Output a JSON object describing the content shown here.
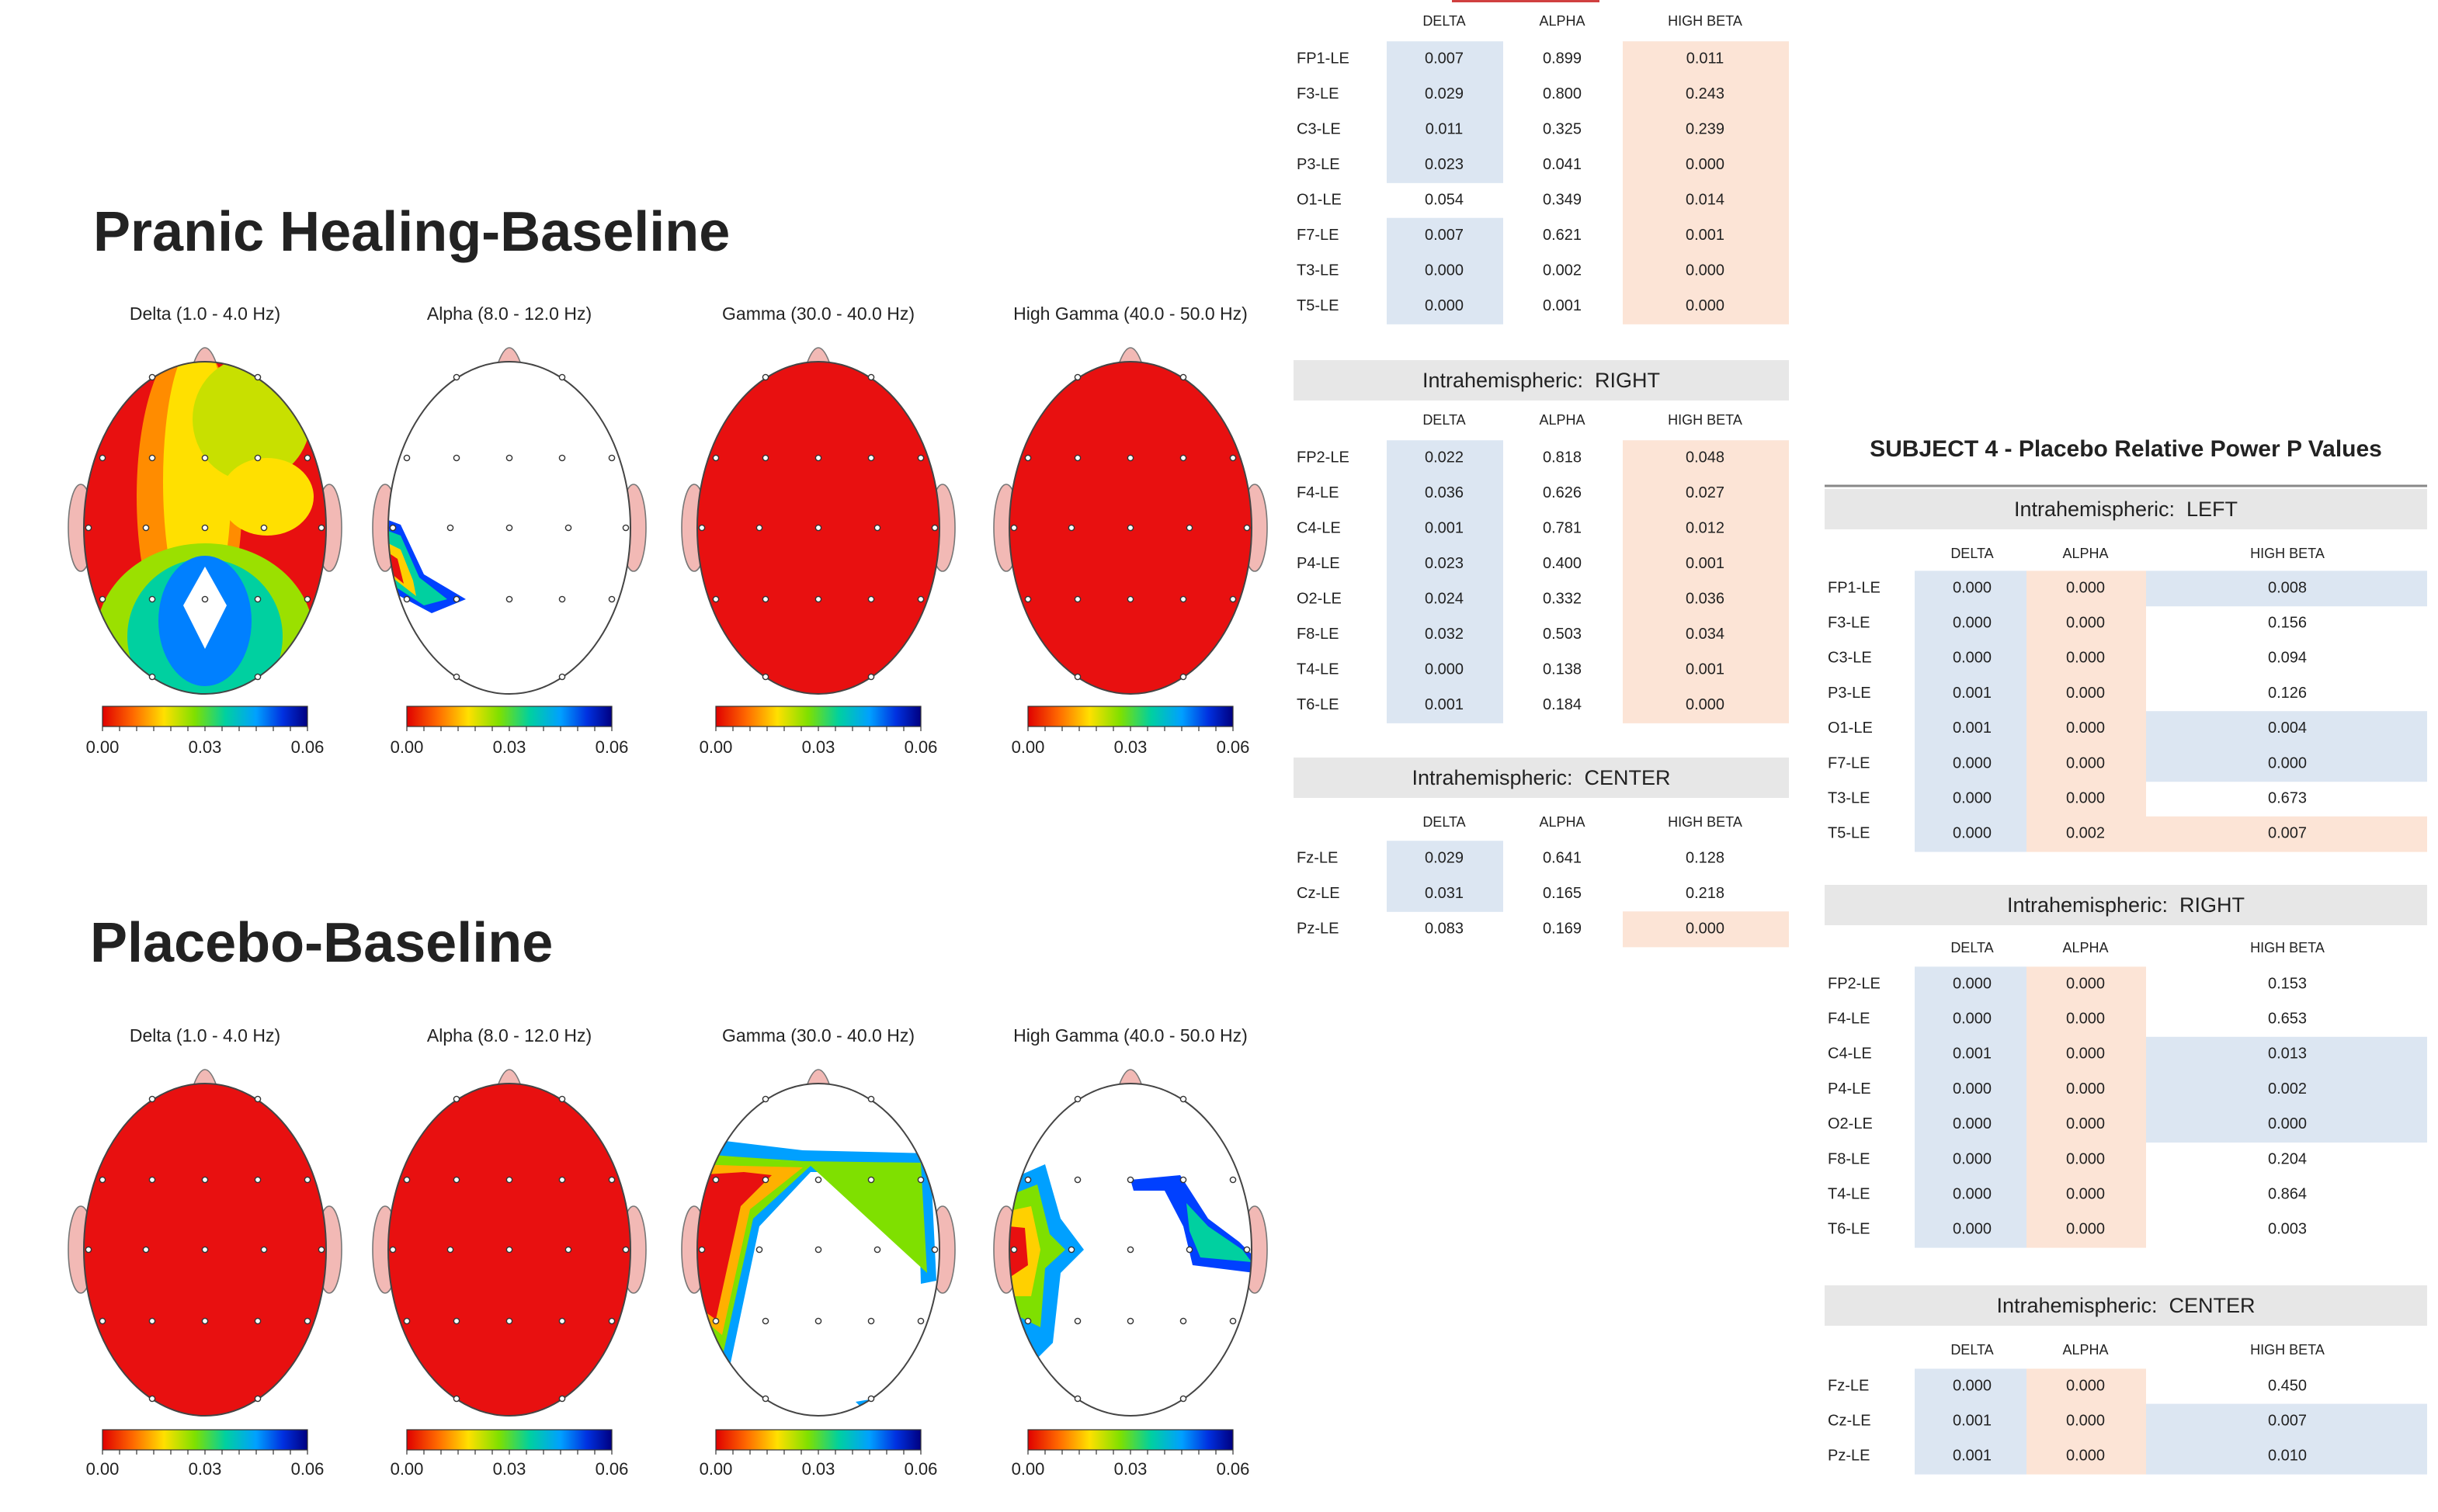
{
  "sections": [
    {
      "title": "Pranic Healing-Baseline",
      "maps": [
        {
          "label": "Delta (1.0 - 4.0 Hz)",
          "scale_labels": [
            "0.00",
            "0.03",
            "0.06"
          ]
        },
        {
          "label": "Alpha (8.0 - 12.0 Hz)",
          "scale_labels": [
            "0.00",
            "0.03",
            "0.06"
          ]
        },
        {
          "label": "Gamma (30.0 - 40.0 Hz)",
          "scale_labels": [
            "0.00",
            "0.03",
            "0.06"
          ]
        },
        {
          "label": "High Gamma (40.0 - 50.0 Hz)",
          "scale_labels": [
            "0.00",
            "0.03",
            "0.06"
          ]
        }
      ]
    },
    {
      "title": "Placebo-Baseline",
      "maps": [
        {
          "label": "Delta (1.0 - 4.0 Hz)",
          "scale_labels": [
            "0.00",
            "0.03",
            "0.06"
          ]
        },
        {
          "label": "Alpha (8.0 - 12.0 Hz)",
          "scale_labels": [
            "0.00",
            "0.03",
            "0.06"
          ]
        },
        {
          "label": "Gamma (30.0 - 40.0 Hz)",
          "scale_labels": [
            "0.00",
            "0.03",
            "0.06"
          ]
        },
        {
          "label": "High Gamma (40.0 - 50.0 Hz)",
          "scale_labels": [
            "0.00",
            "0.03",
            "0.06"
          ]
        }
      ]
    }
  ],
  "tables_left": {
    "tables": [
      {
        "columns": [
          "DELTA",
          "ALPHA",
          "HIGH BETA"
        ],
        "rows": [
          {
            "label": "FP1-LE",
            "cells": [
              "0.007",
              "0.899",
              "0.011"
            ],
            "fills": [
              "#dce6f2",
              null,
              "#fce4d6"
            ]
          },
          {
            "label": "F3-LE",
            "cells": [
              "0.029",
              "0.800",
              "0.243"
            ],
            "fills": [
              "#dce6f2",
              null,
              "#fce4d6"
            ]
          },
          {
            "label": "C3-LE",
            "cells": [
              "0.011",
              "0.325",
              "0.239"
            ],
            "fills": [
              "#dce6f2",
              null,
              "#fce4d6"
            ]
          },
          {
            "label": "P3-LE",
            "cells": [
              "0.023",
              "0.041",
              "0.000"
            ],
            "fills": [
              "#dce6f2",
              null,
              "#fce4d6"
            ]
          },
          {
            "label": "O1-LE",
            "cells": [
              "0.054",
              "0.349",
              "0.014"
            ],
            "fills": [
              null,
              null,
              "#fce4d6"
            ]
          },
          {
            "label": "F7-LE",
            "cells": [
              "0.007",
              "0.621",
              "0.001"
            ],
            "fills": [
              "#dce6f2",
              null,
              "#fce4d6"
            ]
          },
          {
            "label": "T3-LE",
            "cells": [
              "0.000",
              "0.002",
              "0.000"
            ],
            "fills": [
              "#dce6f2",
              null,
              "#fce4d6"
            ]
          },
          {
            "label": "T5-LE",
            "cells": [
              "0.000",
              "0.001",
              "0.000"
            ],
            "fills": [
              "#dce6f2",
              null,
              "#fce4d6"
            ]
          }
        ]
      },
      {
        "title": "Intrahemispheric:  RIGHT",
        "columns": [
          "DELTA",
          "ALPHA",
          "HIGH BETA"
        ],
        "rows": [
          {
            "label": "FP2-LE",
            "cells": [
              "0.022",
              "0.818",
              "0.048"
            ],
            "fills": [
              "#dce6f2",
              null,
              "#fce4d6"
            ]
          },
          {
            "label": "F4-LE",
            "cells": [
              "0.036",
              "0.626",
              "0.027"
            ],
            "fills": [
              "#dce6f2",
              null,
              "#fce4d6"
            ]
          },
          {
            "label": "C4-LE",
            "cells": [
              "0.001",
              "0.781",
              "0.012"
            ],
            "fills": [
              "#dce6f2",
              null,
              "#fce4d6"
            ]
          },
          {
            "label": "P4-LE",
            "cells": [
              "0.023",
              "0.400",
              "0.001"
            ],
            "fills": [
              "#dce6f2",
              null,
              "#fce4d6"
            ]
          },
          {
            "label": "O2-LE",
            "cells": [
              "0.024",
              "0.332",
              "0.036"
            ],
            "fills": [
              "#dce6f2",
              null,
              "#fce4d6"
            ]
          },
          {
            "label": "F8-LE",
            "cells": [
              "0.032",
              "0.503",
              "0.034"
            ],
            "fills": [
              "#dce6f2",
              null,
              "#fce4d6"
            ]
          },
          {
            "label": "T4-LE",
            "cells": [
              "0.000",
              "0.138",
              "0.001"
            ],
            "fills": [
              "#dce6f2",
              null,
              "#fce4d6"
            ]
          },
          {
            "label": "T6-LE",
            "cells": [
              "0.001",
              "0.184",
              "0.000"
            ],
            "fills": [
              "#dce6f2",
              null,
              "#fce4d6"
            ]
          }
        ]
      },
      {
        "title": "Intrahemispheric:  CENTER",
        "columns": [
          "DELTA",
          "ALPHA",
          "HIGH BETA"
        ],
        "rows": [
          {
            "label": "Fz-LE",
            "cells": [
              "0.029",
              "0.641",
              "0.128"
            ],
            "fills": [
              "#dce6f2",
              null,
              null
            ]
          },
          {
            "label": "Cz-LE",
            "cells": [
              "0.031",
              "0.165",
              "0.218"
            ],
            "fills": [
              "#dce6f2",
              null,
              null
            ]
          },
          {
            "label": "Pz-LE",
            "cells": [
              "0.083",
              "0.169",
              "0.000"
            ],
            "fills": [
              null,
              null,
              "#fce4d6"
            ]
          }
        ]
      }
    ]
  },
  "tables_right": {
    "title": "SUBJECT 4 - Placebo Relative Power P Values",
    "tables": [
      {
        "title": "Intrahemispheric:  LEFT",
        "columns": [
          "DELTA",
          "ALPHA",
          "HIGH BETA"
        ],
        "rows": [
          {
            "label": "FP1-LE",
            "cells": [
              "0.000",
              "0.000",
              "0.008"
            ],
            "fills": [
              "#dce6f2",
              "#fce4d6",
              "#dce6f2"
            ]
          },
          {
            "label": "F3-LE",
            "cells": [
              "0.000",
              "0.000",
              "0.156"
            ],
            "fills": [
              "#dce6f2",
              "#fce4d6",
              null
            ]
          },
          {
            "label": "C3-LE",
            "cells": [
              "0.000",
              "0.000",
              "0.094"
            ],
            "fills": [
              "#dce6f2",
              "#fce4d6",
              null
            ]
          },
          {
            "label": "P3-LE",
            "cells": [
              "0.001",
              "0.000",
              "0.126"
            ],
            "fills": [
              "#dce6f2",
              "#fce4d6",
              null
            ]
          },
          {
            "label": "O1-LE",
            "cells": [
              "0.001",
              "0.000",
              "0.004"
            ],
            "fills": [
              "#dce6f2",
              "#fce4d6",
              "#dce6f2"
            ]
          },
          {
            "label": "F7-LE",
            "cells": [
              "0.000",
              "0.000",
              "0.000"
            ],
            "fills": [
              "#dce6f2",
              "#fce4d6",
              "#dce6f2"
            ]
          },
          {
            "label": "T3-LE",
            "cells": [
              "0.000",
              "0.000",
              "0.673"
            ],
            "fills": [
              "#dce6f2",
              "#fce4d6",
              null
            ]
          },
          {
            "label": "T5-LE",
            "cells": [
              "0.000",
              "0.002",
              "0.007"
            ],
            "fills": [
              "#dce6f2",
              "#fce4d6",
              "#fce4d6"
            ]
          }
        ]
      },
      {
        "title": "Intrahemispheric:  RIGHT",
        "columns": [
          "DELTA",
          "ALPHA",
          "HIGH BETA"
        ],
        "rows": [
          {
            "label": "FP2-LE",
            "cells": [
              "0.000",
              "0.000",
              "0.153"
            ],
            "fills": [
              "#dce6f2",
              "#fce4d6",
              null
            ]
          },
          {
            "label": "F4-LE",
            "cells": [
              "0.000",
              "0.000",
              "0.653"
            ],
            "fills": [
              "#dce6f2",
              "#fce4d6",
              null
            ]
          },
          {
            "label": "C4-LE",
            "cells": [
              "0.001",
              "0.000",
              "0.013"
            ],
            "fills": [
              "#dce6f2",
              "#fce4d6",
              "#dce6f2"
            ]
          },
          {
            "label": "P4-LE",
            "cells": [
              "0.000",
              "0.000",
              "0.002"
            ],
            "fills": [
              "#dce6f2",
              "#fce4d6",
              "#dce6f2"
            ]
          },
          {
            "label": "O2-LE",
            "cells": [
              "0.000",
              "0.000",
              "0.000"
            ],
            "fills": [
              "#dce6f2",
              "#fce4d6",
              "#dce6f2"
            ]
          },
          {
            "label": "F8-LE",
            "cells": [
              "0.000",
              "0.000",
              "0.204"
            ],
            "fills": [
              "#dce6f2",
              "#fce4d6",
              null
            ]
          },
          {
            "label": "T4-LE",
            "cells": [
              "0.000",
              "0.000",
              "0.864"
            ],
            "fills": [
              "#dce6f2",
              "#fce4d6",
              null
            ]
          },
          {
            "label": "T6-LE",
            "cells": [
              "0.000",
              "0.000",
              "0.003"
            ],
            "fills": [
              "#dce6f2",
              "#fce4d6",
              null
            ]
          }
        ]
      },
      {
        "title": "Intrahemispheric:  CENTER",
        "columns": [
          "DELTA",
          "ALPHA",
          "HIGH BETA"
        ],
        "rows": [
          {
            "label": "Fz-LE",
            "cells": [
              "0.000",
              "0.000",
              "0.450"
            ],
            "fills": [
              "#dce6f2",
              "#fce4d6",
              null
            ]
          },
          {
            "label": "Cz-LE",
            "cells": [
              "0.001",
              "0.000",
              "0.007"
            ],
            "fills": [
              "#dce6f2",
              "#fce4d6",
              "#dce6f2"
            ]
          },
          {
            "label": "Pz-LE",
            "cells": [
              "0.001",
              "0.000",
              "0.010"
            ],
            "fills": [
              "#dce6f2",
              "#fce4d6",
              "#dce6f2"
            ]
          }
        ]
      }
    ]
  }
}
